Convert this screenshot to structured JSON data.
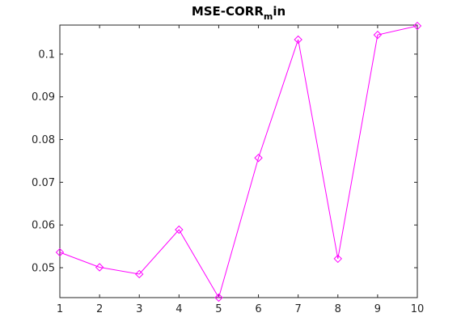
{
  "chart_data": {
    "type": "line",
    "title_main": "MSE-CORR",
    "title_subscript": "m",
    "title_suffix": "in",
    "xlabel": "",
    "ylabel": "",
    "x": [
      1,
      2,
      3,
      4,
      5,
      6,
      7,
      8,
      9,
      10
    ],
    "series": [
      {
        "values": [
          0.0536,
          0.0501,
          0.0485,
          0.0589,
          0.043,
          0.0757,
          0.1034,
          0.0521,
          0.1045,
          0.1066
        ]
      }
    ],
    "xlim": [
      1,
      10
    ],
    "ylim": [
      0.043,
      0.1068
    ],
    "xticks": [
      "1",
      "2",
      "3",
      "4",
      "5",
      "6",
      "7",
      "8",
      "9",
      "10"
    ],
    "yticks": [
      "0.05",
      "0.06",
      "0.07",
      "0.08",
      "0.09",
      "0.1"
    ],
    "ytick_values": [
      0.05,
      0.06,
      0.07,
      0.08,
      0.09,
      0.1
    ],
    "grid": false,
    "line_color": "#ff00ff",
    "marker": "diamond"
  }
}
